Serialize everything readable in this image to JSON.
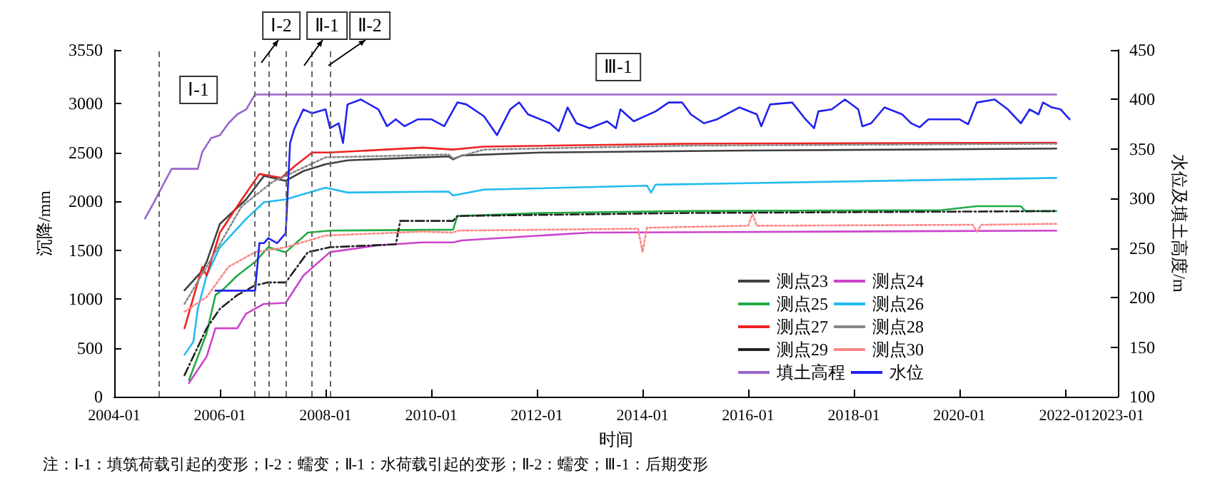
{
  "chart_data": {
    "type": "line",
    "xlabel": "时间",
    "ylabel": "沉降/mm",
    "y2label": "水位及填土高度/m",
    "xlim": [
      "2004-01",
      "2023-01"
    ],
    "xticks": [
      "2004-01",
      "2006-01",
      "2008-01",
      "2010-01",
      "2012-01",
      "2014-01",
      "2016-01",
      "2018-01",
      "2020-01",
      "2022-01",
      "2023-01"
    ],
    "ylim": [
      0,
      3550
    ],
    "yticks": [
      0,
      500,
      1000,
      1500,
      2000,
      2500,
      3000,
      3550
    ],
    "y2lim": [
      100,
      450
    ],
    "y2ticks": [
      100,
      150,
      200,
      250,
      300,
      350,
      400,
      450
    ],
    "grid": false,
    "legend": "bottom right",
    "series": [
      {
        "name": "测点23",
        "color": "#404040",
        "x": [
          "2005-05",
          "2005-09",
          "2005-10",
          "2006-01",
          "2006-07",
          "2006-11",
          "2007-04",
          "2007-08",
          "2008-01",
          "2008-06",
          "2009-11",
          "2010-05",
          "2010-06",
          "2010-08",
          "2012-02",
          "2016-01",
          "2021-11"
        ],
        "values": [
          1090,
          1290,
          1380,
          1770,
          2020,
          2260,
          2210,
          2310,
          2380,
          2420,
          2450,
          2460,
          2430,
          2470,
          2500,
          2520,
          2540
        ]
      },
      {
        "name": "测点24",
        "color": "#cc44cc",
        "x": [
          "2005-06",
          "2005-10",
          "2005-12",
          "2006-05",
          "2006-07",
          "2006-11",
          "2007-04",
          "2007-08",
          "2008-02",
          "2009-01",
          "2009-11",
          "2010-06",
          "2010-08",
          "2013-01",
          "2017-07",
          "2021-11"
        ],
        "values": [
          140,
          410,
          700,
          700,
          850,
          950,
          960,
          1240,
          1480,
          1550,
          1580,
          1580,
          1600,
          1680,
          1690,
          1700
        ]
      },
      {
        "name": "测点25",
        "color": "#22aa44",
        "x": [
          "2005-06",
          "2005-10",
          "2005-12",
          "2006-02",
          "2006-05",
          "2006-09",
          "2006-12",
          "2007-04",
          "2007-09",
          "2008-02",
          "2010-06",
          "2010-07",
          "2012-02",
          "2014-10",
          "2019-09",
          "2020-05",
          "2021-03",
          "2021-04",
          "2021-11"
        ],
        "values": [
          170,
          650,
          1040,
          1110,
          1240,
          1380,
          1530,
          1480,
          1680,
          1700,
          1710,
          1850,
          1880,
          1900,
          1910,
          1950,
          1950,
          1900,
          1900
        ]
      },
      {
        "name": "测点26",
        "color": "#22bbee",
        "x": [
          "2005-05",
          "2005-07",
          "2005-08",
          "2005-10",
          "2006-01",
          "2006-07",
          "2006-11",
          "2007-04",
          "2008-01",
          "2008-06",
          "2010-05",
          "2010-06",
          "2011-01",
          "2014-02",
          "2014-03",
          "2014-04",
          "2021-11"
        ],
        "values": [
          430,
          560,
          900,
          1240,
          1530,
          1820,
          1990,
          2020,
          2140,
          2090,
          2100,
          2060,
          2120,
          2160,
          2090,
          2170,
          2240
        ]
      },
      {
        "name": "测点27",
        "color": "#ee2222",
        "x": [
          "2005-05",
          "2005-09",
          "2005-10",
          "2006-01",
          "2006-06",
          "2006-10",
          "2007-03",
          "2007-06",
          "2007-10",
          "2008-02",
          "2009-11",
          "2010-06",
          "2011-01",
          "2014-10",
          "2021-11"
        ],
        "values": [
          700,
          1330,
          1240,
          1680,
          2020,
          2280,
          2240,
          2360,
          2500,
          2500,
          2550,
          2530,
          2560,
          2590,
          2600
        ]
      },
      {
        "name": "测点28",
        "color": "#888888",
        "line_style": "dotted",
        "x": [
          "2005-05",
          "2005-10",
          "2006-06",
          "2007-01",
          "2008-01",
          "2010-05",
          "2010-06",
          "2011-01",
          "2014-10",
          "2021-11"
        ],
        "values": [
          950,
          1330,
          1950,
          2200,
          2450,
          2480,
          2440,
          2530,
          2570,
          2590
        ]
      },
      {
        "name": "测点29",
        "color": "#222222",
        "line_style": "dashed",
        "x": [
          "2005-05",
          "2005-10",
          "2006-01",
          "2006-05",
          "2006-09",
          "2006-12",
          "2007-04",
          "2007-09",
          "2008-02",
          "2009-05",
          "2009-06",
          "2010-06",
          "2010-07",
          "2014-10",
          "2021-11"
        ],
        "values": [
          220,
          700,
          900,
          1040,
          1140,
          1170,
          1170,
          1480,
          1530,
          1560,
          1800,
          1800,
          1850,
          1880,
          1900
        ]
      },
      {
        "name": "测点30",
        "color": "#ff8888",
        "line_style": "dotted",
        "x": [
          "2005-05",
          "2005-10",
          "2006-03",
          "2006-09",
          "2007-04",
          "2008-01",
          "2009-11",
          "2010-06",
          "2010-07",
          "2013-12",
          "2014-01",
          "2014-02",
          "2016-01",
          "2016-02",
          "2016-03",
          "2020-04",
          "2020-05",
          "2020-06",
          "2021-11"
        ],
        "values": [
          870,
          1020,
          1330,
          1480,
          1530,
          1650,
          1690,
          1680,
          1700,
          1720,
          1480,
          1730,
          1750,
          1870,
          1750,
          1760,
          1690,
          1760,
          1770
        ]
      },
      {
        "name": "填土高程",
        "color": "#9966cc",
        "axis": "y2",
        "x": [
          "2004-08",
          "2004-10",
          "2004-12",
          "2005-02",
          "2005-08",
          "2005-09",
          "2005-11",
          "2006-01",
          "2006-03",
          "2006-05",
          "2006-07",
          "2006-09",
          "2021-11"
        ],
        "values": [
          280,
          296,
          313,
          330,
          330,
          347,
          361,
          364,
          376,
          385,
          390,
          405,
          405
        ]
      },
      {
        "name": "水位",
        "color": "#2222ee",
        "axis": "y2",
        "x": [
          "2005-12",
          "2006-09",
          "2006-10",
          "2006-11",
          "2006-12",
          "2007-02",
          "2007-04",
          "2007-05",
          "2007-06",
          "2007-08",
          "2007-10",
          "2008-01",
          "2008-02",
          "2008-04",
          "2008-05",
          "2008-06",
          "2008-09",
          "2009-01",
          "2009-03",
          "2009-05",
          "2009-07",
          "2009-10",
          "2010-01",
          "2010-04",
          "2010-07",
          "2010-09",
          "2011-01",
          "2011-04",
          "2011-07",
          "2011-09",
          "2011-11",
          "2012-04",
          "2012-06",
          "2012-08",
          "2012-10",
          "2013-01",
          "2013-05",
          "2013-07",
          "2013-08",
          "2013-11",
          "2014-04",
          "2014-07",
          "2014-10",
          "2014-12",
          "2015-03",
          "2015-06",
          "2015-11",
          "2016-03",
          "2016-04",
          "2016-06",
          "2016-11",
          "2017-02",
          "2017-04",
          "2017-05",
          "2017-08",
          "2017-11",
          "2018-02",
          "2018-03",
          "2018-05",
          "2018-08",
          "2018-12",
          "2019-02",
          "2019-04",
          "2019-06",
          "2020-01",
          "2020-03",
          "2020-05",
          "2020-09",
          "2020-12",
          "2021-03",
          "2021-05",
          "2021-07",
          "2021-08",
          "2021-10",
          "2021-12",
          "2022-02"
        ],
        "values": [
          207,
          207,
          255,
          255,
          260,
          255,
          265,
          356,
          371,
          390,
          386,
          390,
          371,
          376,
          356,
          395,
          400,
          390,
          373,
          380,
          373,
          380,
          380,
          373,
          397,
          395,
          383,
          364,
          390,
          397,
          385,
          376,
          368,
          392,
          376,
          371,
          378,
          371,
          390,
          378,
          388,
          397,
          397,
          385,
          376,
          380,
          392,
          385,
          373,
          395,
          397,
          380,
          371,
          388,
          390,
          400,
          390,
          373,
          376,
          392,
          385,
          376,
          372,
          380,
          380,
          375,
          397,
          400,
          390,
          376,
          390,
          385,
          397,
          392,
          390,
          380
        ]
      }
    ],
    "ref_lines": [
      {
        "axis": "x",
        "value": "2004-11",
        "color": "#666666",
        "line_style": "dashed"
      },
      {
        "axis": "x",
        "value": "2006-09",
        "color": "#666666",
        "line_style": "dashed"
      },
      {
        "axis": "x",
        "value": "2006-12",
        "color": "#666666",
        "line_style": "dashed"
      },
      {
        "axis": "x",
        "value": "2007-04",
        "color": "#666666",
        "line_style": "dashed"
      },
      {
        "axis": "x",
        "value": "2007-10",
        "color": "#666666",
        "line_style": "dashed"
      },
      {
        "axis": "x",
        "value": "2008-02",
        "color": "#666666",
        "line_style": "dashed"
      }
    ],
    "annotations": [
      "Ⅰ-1",
      "Ⅰ-2",
      "Ⅱ-1",
      "Ⅱ-2",
      "Ⅲ-1",
      "注：Ⅰ-1：填筑荷载引起的变形；Ⅰ-2：蠕变；Ⅱ-1：水荷载引起的变形；Ⅱ-2：蠕变；Ⅲ-1：后期变形"
    ]
  }
}
